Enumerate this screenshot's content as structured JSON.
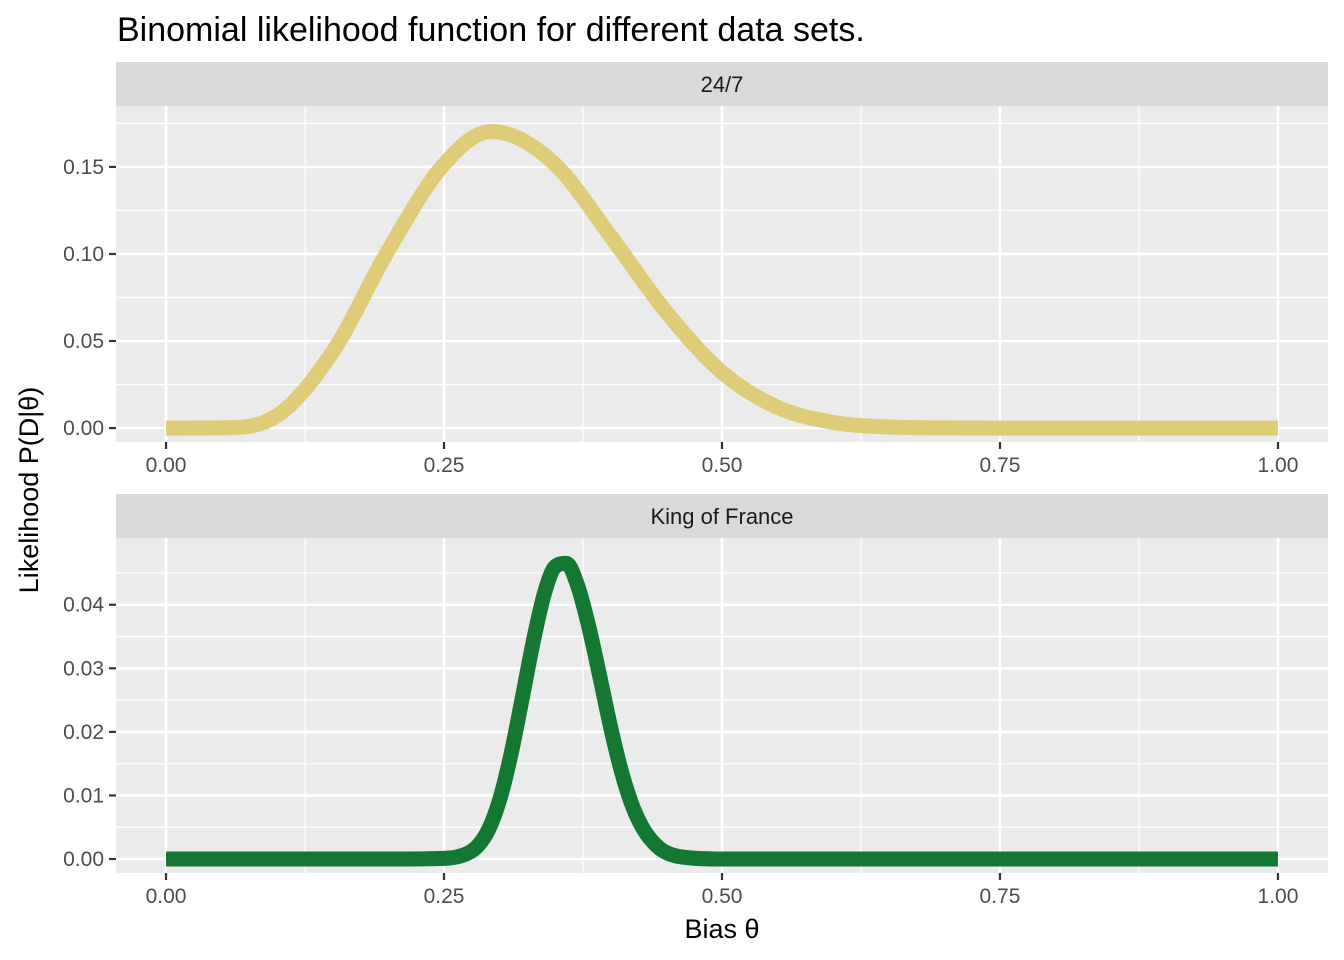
{
  "chart_data": {
    "type": "line",
    "title": "Binomial likelihood function for different data sets.",
    "xlabel": "Bias θ",
    "ylabel": "Likelihood P(D|θ)",
    "xlim": [
      0,
      1
    ],
    "grid": true,
    "legend": "none",
    "panels": [
      {
        "strip": "24/7",
        "color": "#DFCC78",
        "ylim": [
          -0.008,
          0.185
        ],
        "x_ticks": [
          0,
          0.25,
          0.5,
          0.75,
          1
        ],
        "x_tick_labels": [
          "0.00",
          "0.25",
          "0.50",
          "0.75",
          "1.00"
        ],
        "y_ticks": [
          0,
          0.05,
          0.1,
          0.15
        ],
        "y_tick_labels": [
          "0.00",
          "0.05",
          "0.10",
          "0.15"
        ],
        "x": [
          0,
          0.05,
          0.1,
          0.15,
          0.2,
          0.25,
          0.2917,
          0.3,
          0.35,
          0.4,
          0.45,
          0.5,
          0.55,
          0.6,
          0.65,
          0.7,
          0.75,
          0.8,
          0.85,
          0.9,
          0.95,
          1
        ],
        "y": [
          0,
          0.0001,
          0.0072,
          0.0439,
          0.1023,
          0.1515,
          0.1703,
          0.17,
          0.1514,
          0.11,
          0.0665,
          0.032,
          0.0119,
          0.0033,
          0.0006,
          0.0001,
          0,
          0,
          0,
          0,
          0,
          0
        ]
      },
      {
        "strip": "King of France",
        "color": "#147833",
        "ylim": [
          -0.0022,
          0.0505
        ],
        "x_ticks": [
          0,
          0.25,
          0.5,
          0.75,
          1
        ],
        "x_tick_labels": [
          "0.00",
          "0.25",
          "0.50",
          "0.75",
          "1.00"
        ],
        "y_ticks": [
          0,
          0.01,
          0.02,
          0.03,
          0.04
        ],
        "y_tick_labels": [
          "0.00",
          "0.01",
          "0.02",
          "0.03",
          "0.04"
        ],
        "x": [
          0,
          0.2,
          0.25,
          0.27,
          0.28,
          0.29,
          0.3,
          0.31,
          0.32,
          0.33,
          0.34,
          0.35,
          0.36,
          0.37,
          0.38,
          0.39,
          0.4,
          0.41,
          0.42,
          0.43,
          0.44,
          0.45,
          0.47,
          0.5,
          1
        ],
        "y": [
          0,
          0,
          0.0001,
          0.0008,
          0.002,
          0.0046,
          0.0093,
          0.0163,
          0.025,
          0.034,
          0.0416,
          0.046,
          0.0465,
          0.0431,
          0.0367,
          0.0288,
          0.0206,
          0.0135,
          0.0081,
          0.0045,
          0.0023,
          0.001,
          0.0002,
          0,
          0
        ]
      }
    ]
  }
}
